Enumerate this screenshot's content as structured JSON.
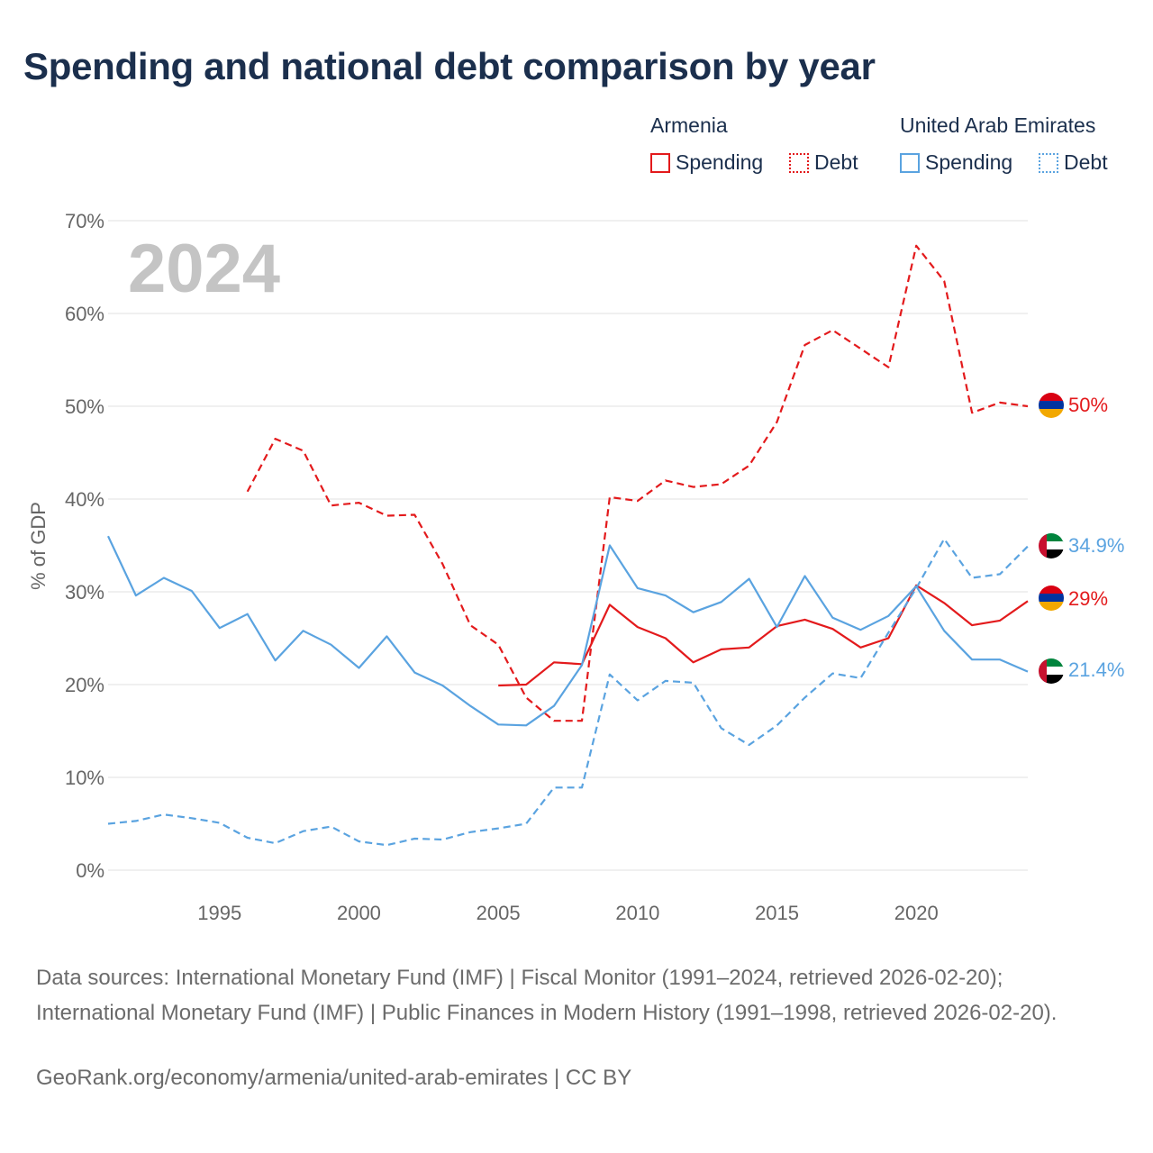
{
  "title": "Spending and national debt comparison by year",
  "legend": {
    "groups": [
      {
        "name": "Armenia",
        "items": [
          "Spending",
          "Debt"
        ]
      },
      {
        "name": "United Arab Emirates",
        "items": [
          "Spending",
          "Debt"
        ]
      }
    ]
  },
  "colors": {
    "armenia": "#e31a1c",
    "uae": "#5aa3e0",
    "grid": "#e6e6e6",
    "axis_text": "#666666",
    "watermark": "#c4c4c4"
  },
  "chart_data": {
    "type": "line",
    "year_watermark": "2024",
    "ylabel": "% of GDP",
    "ylim": [
      0,
      70
    ],
    "xlim": [
      1991,
      2024
    ],
    "y_ticks": [
      0,
      10,
      20,
      30,
      40,
      50,
      60,
      70
    ],
    "y_tick_labels": [
      "0%",
      "10%",
      "20%",
      "30%",
      "40%",
      "50%",
      "60%",
      "70%"
    ],
    "x_ticks": [
      1995,
      2000,
      2005,
      2010,
      2015,
      2020
    ],
    "x_tick_labels": [
      "1995",
      "2000",
      "2005",
      "2010",
      "2015",
      "2020"
    ],
    "series": [
      {
        "name": "Armenia Spending",
        "country": "Armenia",
        "measure": "Spending",
        "style": "solid",
        "color": "#e31a1c",
        "x": [
          2005,
          2006,
          2007,
          2008,
          2009,
          2010,
          2011,
          2012,
          2013,
          2014,
          2015,
          2016,
          2017,
          2018,
          2019,
          2020,
          2021,
          2022,
          2023,
          2024
        ],
        "values": [
          19.9,
          20.0,
          22.4,
          22.2,
          28.6,
          26.2,
          25.0,
          22.4,
          23.8,
          24.0,
          26.3,
          27.0,
          26.0,
          24.0,
          25.0,
          30.7,
          28.8,
          26.4,
          26.9,
          29.0
        ],
        "end_label": "29%"
      },
      {
        "name": "Armenia Debt",
        "country": "Armenia",
        "measure": "Debt",
        "style": "dashed",
        "color": "#e31a1c",
        "x": [
          1996,
          1997,
          1998,
          1999,
          2000,
          2001,
          2002,
          2003,
          2004,
          2005,
          2006,
          2007,
          2008,
          2009,
          2010,
          2011,
          2012,
          2013,
          2014,
          2015,
          2016,
          2017,
          2018,
          2019,
          2020,
          2021,
          2022,
          2023,
          2024
        ],
        "values": [
          40.8,
          46.5,
          45.2,
          39.3,
          39.6,
          38.2,
          38.3,
          33.0,
          26.4,
          24.3,
          18.6,
          16.1,
          16.1,
          40.2,
          39.8,
          42.0,
          41.3,
          41.6,
          43.6,
          48.3,
          56.6,
          58.2,
          56.2,
          54.2,
          67.3,
          63.5,
          49.3,
          50.4,
          50.0
        ],
        "end_label": "50%"
      },
      {
        "name": "United Arab Emirates Spending",
        "country": "United Arab Emirates",
        "measure": "Spending",
        "style": "solid",
        "color": "#5aa3e0",
        "x": [
          1991,
          1992,
          1993,
          1994,
          1995,
          1996,
          1997,
          1998,
          1999,
          2000,
          2001,
          2002,
          2003,
          2004,
          2005,
          2006,
          2007,
          2008,
          2009,
          2010,
          2011,
          2012,
          2013,
          2014,
          2015,
          2016,
          2017,
          2018,
          2019,
          2020,
          2021,
          2022,
          2023,
          2024
        ],
        "values": [
          36.0,
          29.6,
          31.5,
          30.1,
          26.1,
          27.6,
          22.6,
          25.8,
          24.3,
          21.8,
          25.2,
          21.3,
          19.9,
          17.7,
          15.7,
          15.6,
          17.7,
          22.1,
          35.0,
          30.4,
          29.6,
          27.8,
          28.9,
          31.4,
          26.2,
          31.7,
          27.2,
          25.9,
          27.4,
          30.6,
          25.8,
          22.7,
          22.7,
          21.4
        ],
        "end_label": "21.4%"
      },
      {
        "name": "United Arab Emirates Debt",
        "country": "United Arab Emirates",
        "measure": "Debt",
        "style": "dashed",
        "color": "#5aa3e0",
        "x": [
          1991,
          1992,
          1993,
          1994,
          1995,
          1996,
          1997,
          1998,
          1999,
          2000,
          2001,
          2002,
          2003,
          2004,
          2005,
          2006,
          2007,
          2008,
          2009,
          2010,
          2011,
          2012,
          2013,
          2014,
          2015,
          2016,
          2017,
          2018,
          2019,
          2020,
          2021,
          2022,
          2023,
          2024
        ],
        "values": [
          5.0,
          5.3,
          6.0,
          5.6,
          5.1,
          3.5,
          2.9,
          4.2,
          4.7,
          3.1,
          2.7,
          3.4,
          3.3,
          4.1,
          4.5,
          5.0,
          8.9,
          8.9,
          21.1,
          18.3,
          20.4,
          20.2,
          15.3,
          13.5,
          15.6,
          18.6,
          21.2,
          20.7,
          25.6,
          30.4,
          35.7,
          31.5,
          31.9,
          34.9
        ],
        "end_label": "34.9%"
      }
    ]
  },
  "sources": {
    "text": "Data sources: International Monetary Fund (IMF) | Fiscal Monitor (1991–2024, retrieved 2026-02-20); International Monetary Fund (IMF) | Public Finances in Modern History (1991–1998, retrieved 2026-02-20).",
    "link": "GeoRank.org/economy/armenia/united-arab-emirates | CC BY"
  }
}
